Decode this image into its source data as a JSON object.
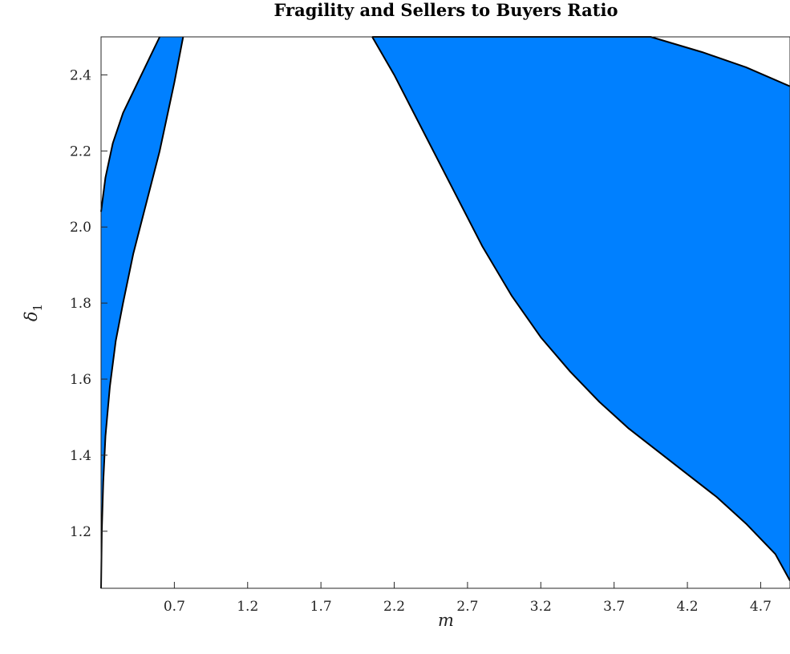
{
  "chart_data": {
    "type": "area",
    "title": "Fragility and Sellers to Buyers Ratio",
    "xlabel": "m",
    "ylabel": "δ",
    "ylabel_subscript": "1",
    "xlim": [
      0.2,
      4.9
    ],
    "ylim": [
      1.05,
      2.5
    ],
    "xticks": [
      "0.7",
      "1.2",
      "1.7",
      "2.2",
      "2.7",
      "3.2",
      "3.7",
      "4.2",
      "4.7"
    ],
    "yticks": [
      "1.2",
      "1.4",
      "1.6",
      "1.8",
      "2.0",
      "2.2",
      "2.4"
    ],
    "xtick_values": [
      0.7,
      1.2,
      1.7,
      2.2,
      2.7,
      3.2,
      3.7,
      4.2,
      4.7
    ],
    "ytick_values": [
      1.2,
      1.4,
      1.6,
      1.8,
      2.0,
      2.2,
      2.4
    ],
    "grid": false,
    "fill_color": "#0080ff",
    "regions": [
      {
        "upper": {
          "x": [
            0.2,
            0.23,
            0.28,
            0.35,
            0.45,
            0.55,
            0.6
          ],
          "y": [
            2.04,
            2.13,
            2.22,
            2.3,
            2.38,
            2.46,
            2.5
          ]
        },
        "lower": {
          "x": [
            0.2,
            0.205,
            0.215,
            0.23,
            0.26,
            0.3,
            0.35,
            0.42,
            0.5,
            0.6,
            0.7,
            0.76
          ],
          "y": [
            1.05,
            1.2,
            1.33,
            1.45,
            1.58,
            1.7,
            1.8,
            1.93,
            2.05,
            2.2,
            2.38,
            2.5
          ]
        }
      },
      {
        "upper": {
          "x": [
            2.05,
            3.95,
            4.3,
            4.6,
            4.9
          ],
          "y": [
            2.5,
            2.5,
            2.46,
            2.42,
            2.37
          ]
        },
        "lower": {
          "x": [
            2.05,
            2.2,
            2.4,
            2.6,
            2.8,
            3.0,
            3.2,
            3.4,
            3.6,
            3.8,
            4.0,
            4.2,
            4.4,
            4.6,
            4.8,
            4.9
          ],
          "y": [
            2.5,
            2.4,
            2.25,
            2.1,
            1.95,
            1.82,
            1.71,
            1.62,
            1.54,
            1.47,
            1.41,
            1.35,
            1.29,
            1.22,
            1.14,
            1.07
          ]
        }
      }
    ]
  }
}
